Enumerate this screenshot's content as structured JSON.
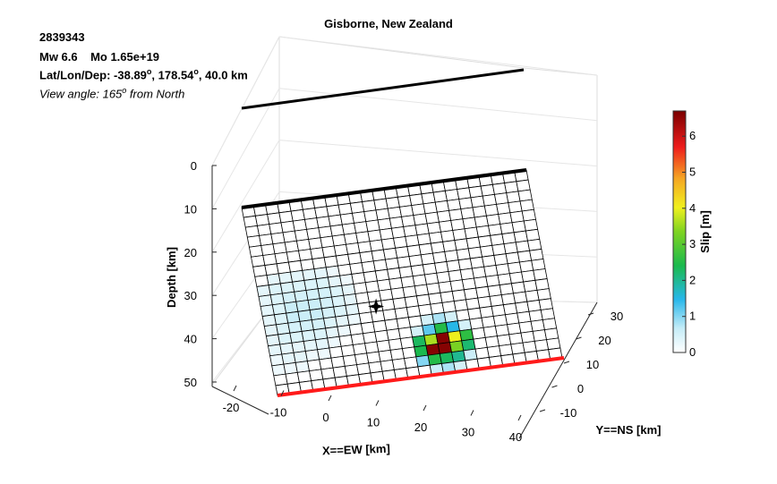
{
  "event": {
    "id": "2839343",
    "mw_line": "Mw 6.6    Mo 1.65e+19",
    "loc_line_prefix": "Lat/Lon/Dep: -38.89",
    "lat_lon_sep": ", 178.54",
    "loc_line_suffix": ", 40.0 km",
    "view_prefix": "View angle: 165",
    "view_suffix": " from North",
    "degree_sup": "o"
  },
  "chart_data": {
    "type": "heatmap",
    "title": "Gisborne, New Zealand",
    "xlabel": "X==EW [km]",
    "ylabel": "Y==NS [km]",
    "zlabel": "Depth [km]",
    "x_ticks": [
      "-20",
      "-10",
      "0",
      "10",
      "20",
      "30",
      "40"
    ],
    "y_ticks": [
      "-10",
      "0",
      "10",
      "20",
      "30"
    ],
    "z_ticks": [
      "0",
      "10",
      "20",
      "30",
      "40",
      "50"
    ],
    "colorbar": {
      "label": "Slip [m]",
      "range": [
        0,
        6.7
      ],
      "ticks": [
        "0",
        "1",
        "2",
        "3",
        "4",
        "5",
        "6"
      ]
    },
    "grid": {
      "cols": 24,
      "rows": 19
    },
    "hypocenter": {
      "col": 9,
      "row": 11
    },
    "slip_patches": [
      {
        "c": 1,
        "r": 7,
        "v": 0.3
      },
      {
        "c": 2,
        "r": 7,
        "v": 0.3
      },
      {
        "c": 3,
        "r": 7,
        "v": 0.3
      },
      {
        "c": 4,
        "r": 7,
        "v": 0.3
      },
      {
        "c": 5,
        "r": 7,
        "v": 0.3
      },
      {
        "c": 6,
        "r": 7,
        "v": 0.2
      },
      {
        "c": 0,
        "r": 8,
        "v": 0.3
      },
      {
        "c": 1,
        "r": 8,
        "v": 0.4
      },
      {
        "c": 2,
        "r": 8,
        "v": 0.4
      },
      {
        "c": 3,
        "r": 8,
        "v": 0.4
      },
      {
        "c": 4,
        "r": 8,
        "v": 0.4
      },
      {
        "c": 5,
        "r": 8,
        "v": 0.4
      },
      {
        "c": 6,
        "r": 8,
        "v": 0.3
      },
      {
        "c": 7,
        "r": 8,
        "v": 0.2
      },
      {
        "c": 0,
        "r": 9,
        "v": 0.3
      },
      {
        "c": 1,
        "r": 9,
        "v": 0.4
      },
      {
        "c": 2,
        "r": 9,
        "v": 0.5
      },
      {
        "c": 3,
        "r": 9,
        "v": 0.5
      },
      {
        "c": 4,
        "r": 9,
        "v": 0.5
      },
      {
        "c": 5,
        "r": 9,
        "v": 0.5
      },
      {
        "c": 6,
        "r": 9,
        "v": 0.4
      },
      {
        "c": 7,
        "r": 9,
        "v": 0.3
      },
      {
        "c": 0,
        "r": 10,
        "v": 0.3
      },
      {
        "c": 1,
        "r": 10,
        "v": 0.4
      },
      {
        "c": 2,
        "r": 10,
        "v": 0.6
      },
      {
        "c": 3,
        "r": 10,
        "v": 0.6
      },
      {
        "c": 4,
        "r": 10,
        "v": 0.6
      },
      {
        "c": 5,
        "r": 10,
        "v": 0.5
      },
      {
        "c": 6,
        "r": 10,
        "v": 0.4
      },
      {
        "c": 7,
        "r": 10,
        "v": 0.3
      },
      {
        "c": 0,
        "r": 11,
        "v": 0.3
      },
      {
        "c": 1,
        "r": 11,
        "v": 0.4
      },
      {
        "c": 2,
        "r": 11,
        "v": 0.6
      },
      {
        "c": 3,
        "r": 11,
        "v": 0.6
      },
      {
        "c": 4,
        "r": 11,
        "v": 0.6
      },
      {
        "c": 5,
        "r": 11,
        "v": 0.5
      },
      {
        "c": 6,
        "r": 11,
        "v": 0.4
      },
      {
        "c": 7,
        "r": 11,
        "v": 0.3
      },
      {
        "c": 0,
        "r": 12,
        "v": 0.3
      },
      {
        "c": 1,
        "r": 12,
        "v": 0.4
      },
      {
        "c": 2,
        "r": 12,
        "v": 0.5
      },
      {
        "c": 3,
        "r": 12,
        "v": 0.5
      },
      {
        "c": 4,
        "r": 12,
        "v": 0.5
      },
      {
        "c": 5,
        "r": 12,
        "v": 0.4
      },
      {
        "c": 6,
        "r": 12,
        "v": 0.3
      },
      {
        "c": 7,
        "r": 12,
        "v": 0.2
      },
      {
        "c": 0,
        "r": 13,
        "v": 0.3
      },
      {
        "c": 1,
        "r": 13,
        "v": 0.4
      },
      {
        "c": 2,
        "r": 13,
        "v": 0.4
      },
      {
        "c": 3,
        "r": 13,
        "v": 0.4
      },
      {
        "c": 4,
        "r": 13,
        "v": 0.4
      },
      {
        "c": 5,
        "r": 13,
        "v": 0.3
      },
      {
        "c": 6,
        "r": 13,
        "v": 0.2
      },
      {
        "c": 0,
        "r": 14,
        "v": 0.3
      },
      {
        "c": 1,
        "r": 14,
        "v": 0.3
      },
      {
        "c": 2,
        "r": 14,
        "v": 0.3
      },
      {
        "c": 3,
        "r": 14,
        "v": 0.3
      },
      {
        "c": 4,
        "r": 14,
        "v": 0.3
      },
      {
        "c": 5,
        "r": 14,
        "v": 0.2
      },
      {
        "c": 0,
        "r": 15,
        "v": 0.2
      },
      {
        "c": 1,
        "r": 15,
        "v": 0.3
      },
      {
        "c": 2,
        "r": 15,
        "v": 0.3
      },
      {
        "c": 3,
        "r": 15,
        "v": 0.2
      },
      {
        "c": 4,
        "r": 15,
        "v": 0.2
      },
      {
        "c": 0,
        "r": 16,
        "v": 0.2
      },
      {
        "c": 1,
        "r": 16,
        "v": 0.2
      },
      {
        "c": 2,
        "r": 16,
        "v": 0.2
      },
      {
        "c": 13,
        "r": 13,
        "v": 0.5
      },
      {
        "c": 14,
        "r": 13,
        "v": 0.8
      },
      {
        "c": 15,
        "r": 13,
        "v": 0.5
      },
      {
        "c": 12,
        "r": 14,
        "v": 0.5
      },
      {
        "c": 13,
        "r": 14,
        "v": 1.2
      },
      {
        "c": 14,
        "r": 14,
        "v": 2.5
      },
      {
        "c": 15,
        "r": 14,
        "v": 1.5
      },
      {
        "c": 16,
        "r": 14,
        "v": 0.5
      },
      {
        "c": 12,
        "r": 15,
        "v": 2.3
      },
      {
        "c": 13,
        "r": 15,
        "v": 3.6
      },
      {
        "c": 14,
        "r": 15,
        "v": 6.6
      },
      {
        "c": 15,
        "r": 15,
        "v": 4.0
      },
      {
        "c": 16,
        "r": 15,
        "v": 2.6
      },
      {
        "c": 12,
        "r": 16,
        "v": 2.4
      },
      {
        "c": 13,
        "r": 16,
        "v": 6.6
      },
      {
        "c": 14,
        "r": 16,
        "v": 6.6
      },
      {
        "c": 15,
        "r": 16,
        "v": 3.3
      },
      {
        "c": 16,
        "r": 16,
        "v": 2.2
      },
      {
        "c": 12,
        "r": 17,
        "v": 1.0
      },
      {
        "c": 13,
        "r": 17,
        "v": 2.5
      },
      {
        "c": 14,
        "r": 17,
        "v": 2.3
      },
      {
        "c": 15,
        "r": 17,
        "v": 2.0
      },
      {
        "c": 16,
        "r": 17,
        "v": 0.6
      },
      {
        "c": 13,
        "r": 18,
        "v": 0.6
      },
      {
        "c": 14,
        "r": 18,
        "v": 0.8
      },
      {
        "c": 15,
        "r": 18,
        "v": 0.5
      }
    ]
  }
}
